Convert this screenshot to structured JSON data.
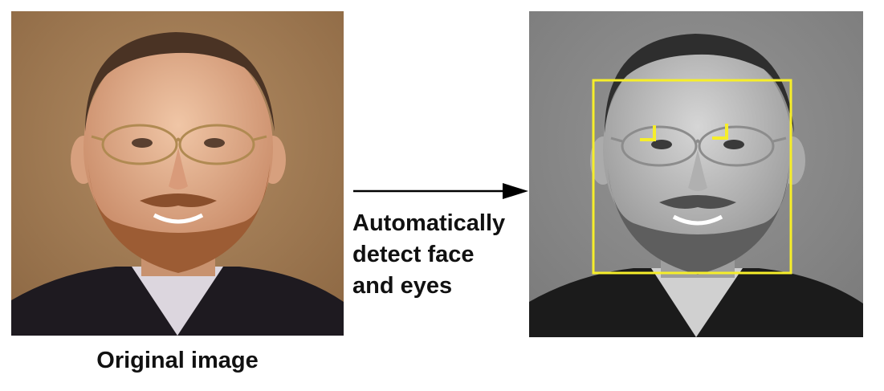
{
  "labels": {
    "left_caption": "Original image",
    "arrow_lines": [
      "Automatically",
      "detect face",
      "and eyes"
    ]
  },
  "colors": {
    "detection": "#f6ee2a",
    "arrow": "#000000",
    "original_background": "#a8825a",
    "grayscale_background": "#8a8a8a"
  }
}
